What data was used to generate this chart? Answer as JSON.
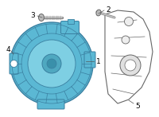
{
  "bg_color": "#ffffff",
  "alternator_fill": "#5bb8d4",
  "alternator_stroke": "#3a7fa0",
  "part_stroke": "#555555",
  "label_color": "#000000",
  "bracket_fill": "#ffffff",
  "bracket_stroke": "#666666"
}
